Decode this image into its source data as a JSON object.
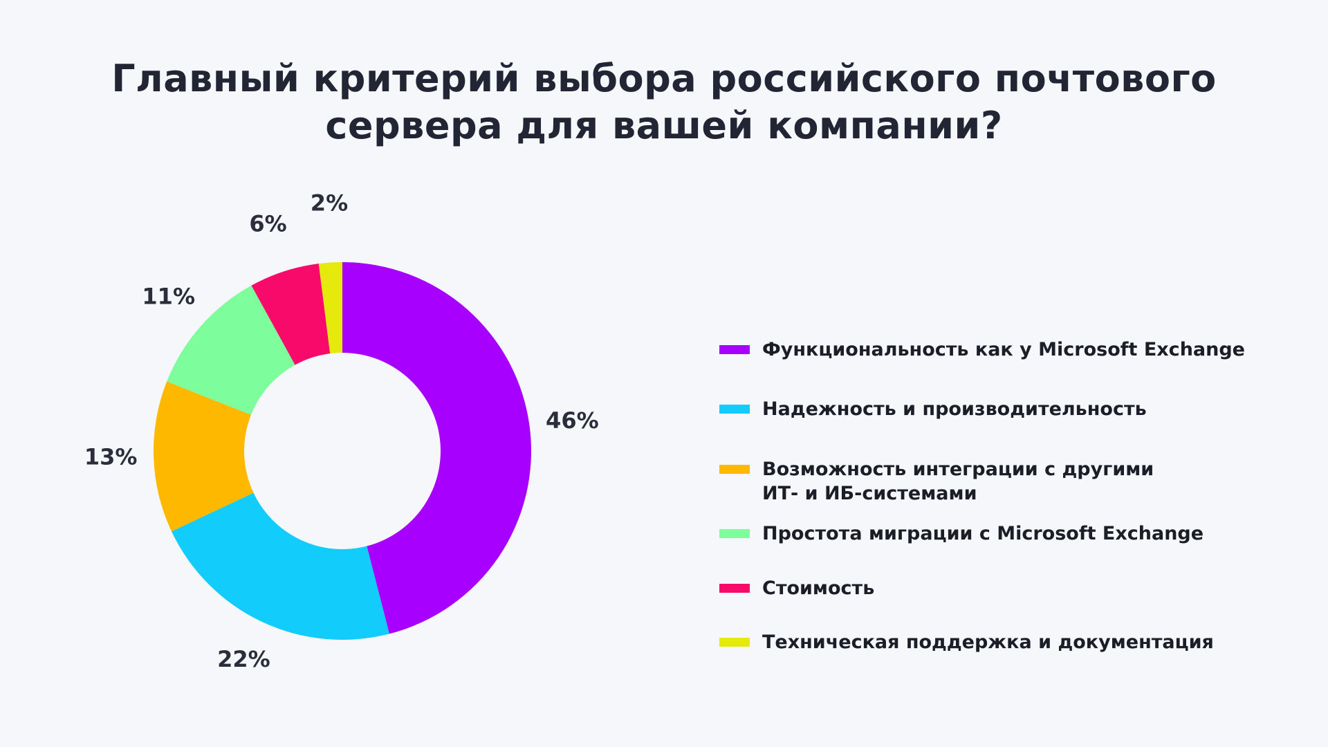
{
  "title": {
    "line1": "Главный критерий выбора российского почтового",
    "line2": "сервера для вашей компании?"
  },
  "chart_data": {
    "type": "donut",
    "title": "Главный критерий выбора российского почтового сервера для вашей компании?",
    "unit": "%",
    "legend_position": "right",
    "series": [
      {
        "name": "Функциональность как у Microsoft Exchange",
        "value": 46,
        "label": "46%",
        "color": "#a700ff"
      },
      {
        "name": "Надежность и производительность",
        "value": 22,
        "label": "22%",
        "color": "#12ccfb"
      },
      {
        "name": "Возможность интеграции с другими ИТ- и ИБ-системами",
        "value": 13,
        "label": "13%",
        "color": "#ffb800"
      },
      {
        "name": "Простота миграции с Microsoft Exchange",
        "value": 11,
        "label": "11%",
        "color": "#7dfd9b"
      },
      {
        "name": "Стоимость",
        "value": 6,
        "label": "6%",
        "color": "#f80a6a"
      },
      {
        "name": "Техническая поддержка и документация",
        "value": 2,
        "label": "2%",
        "color": "#e6ea0c"
      }
    ]
  },
  "legend": {
    "items": [
      {
        "line1": "Функциональность как у Microsoft Exchange",
        "line2": ""
      },
      {
        "line1": "Надежность и производительность",
        "line2": ""
      },
      {
        "line1": "Возможность интеграции с другими",
        "line2": "ИТ- и ИБ-системами"
      },
      {
        "line1": "Простота миграции с Microsoft Exchange",
        "line2": ""
      },
      {
        "line1": "Стоимость",
        "line2": ""
      },
      {
        "line1": "Техническая поддержка и документация",
        "line2": ""
      }
    ]
  }
}
